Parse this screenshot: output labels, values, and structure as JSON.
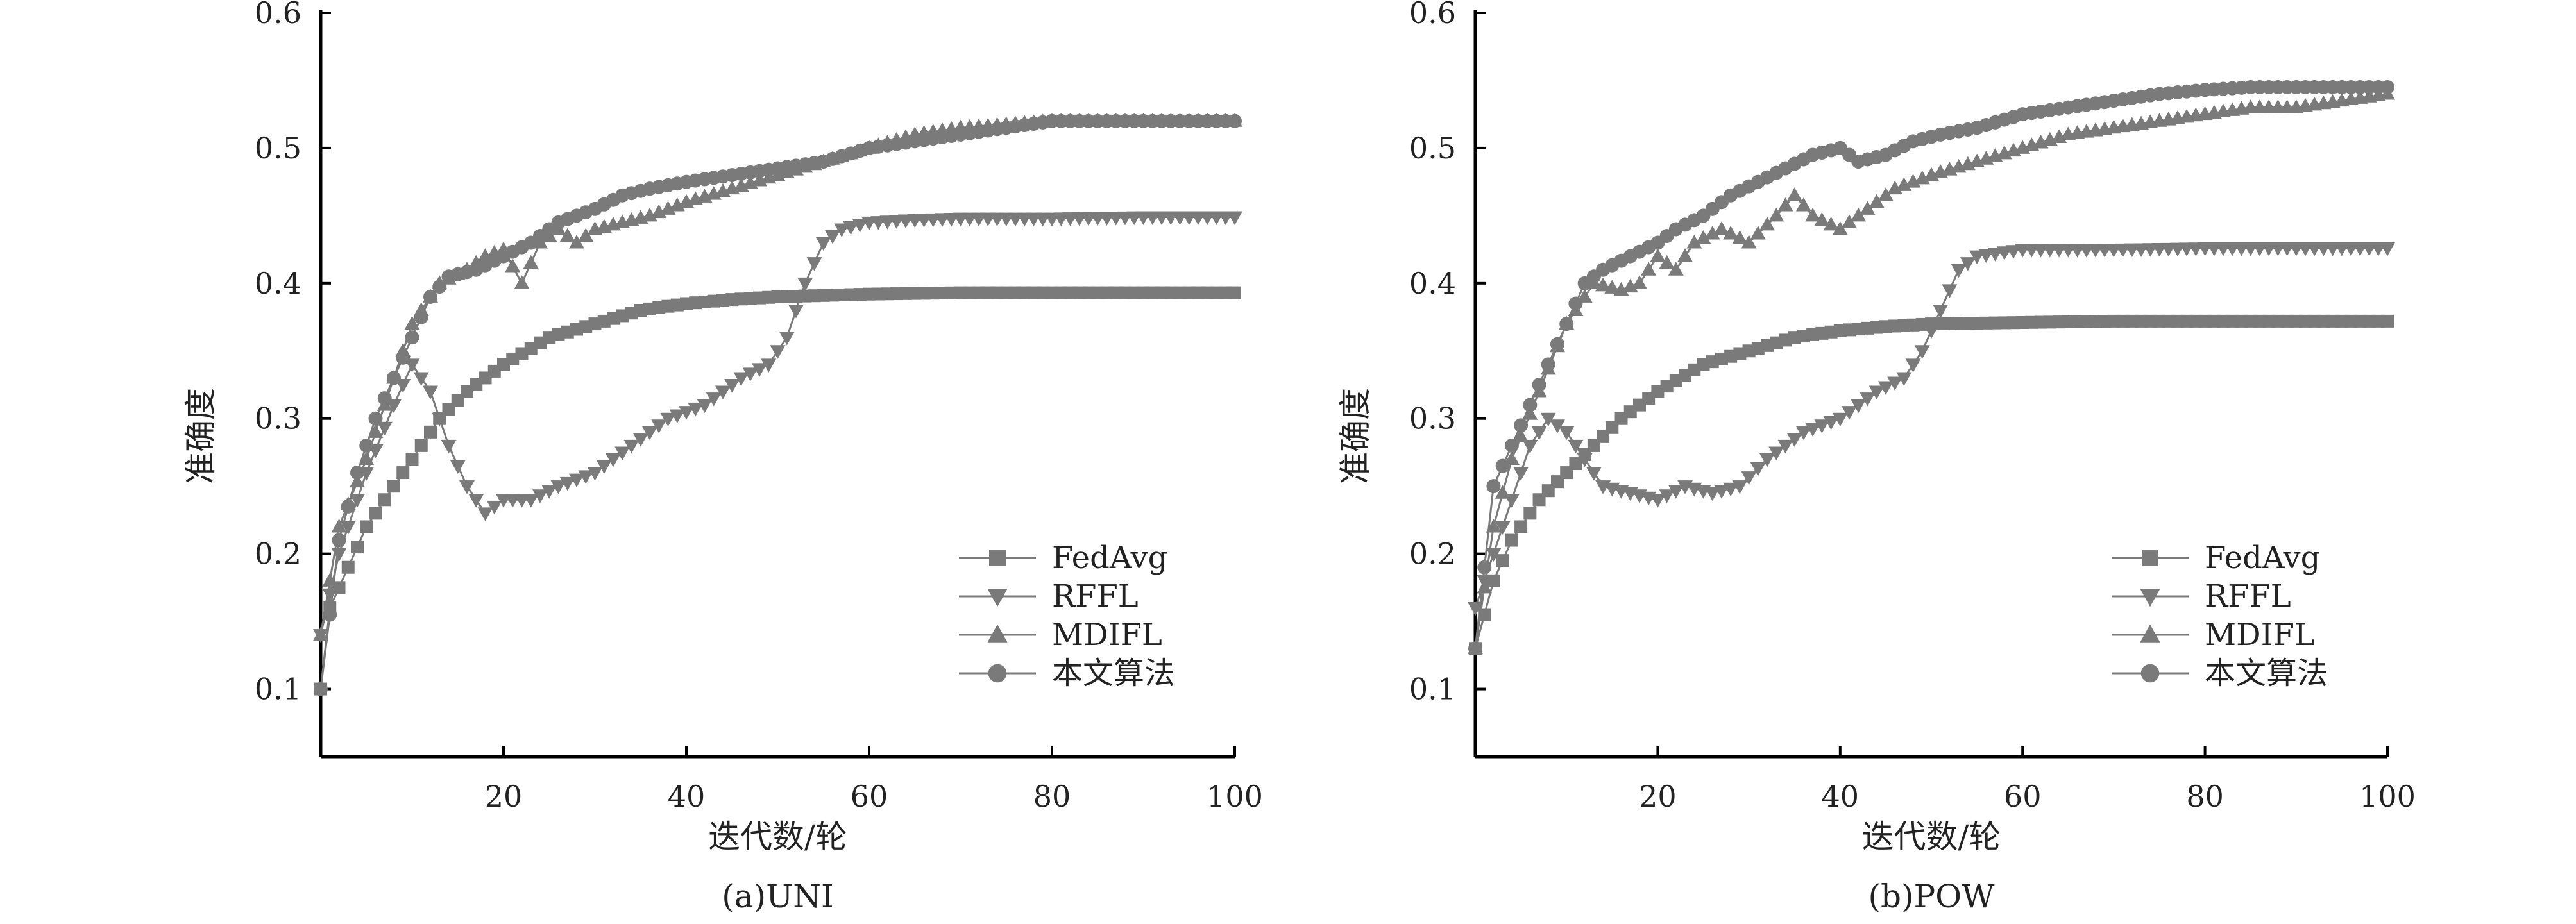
{
  "figure": {
    "colors": {
      "series": "#7a7a7a",
      "axis": "#000000",
      "text": "#222222"
    }
  },
  "chart_data": [
    {
      "type": "line",
      "caption": "(a)UNI",
      "xlabel": "迭代数/轮",
      "ylabel": "准确度",
      "xlim": [
        0,
        100
      ],
      "ylim": [
        0.05,
        0.6
      ],
      "x_ticks": [
        20,
        40,
        60,
        80,
        100
      ],
      "y_ticks": [
        0.1,
        0.2,
        0.3,
        0.4,
        0.5,
        0.6
      ],
      "x_tick_labels": [
        "20",
        "40",
        "60",
        "80",
        "100"
      ],
      "y_tick_labels": [
        "0.1",
        "0.2",
        "0.3",
        "0.4",
        "0.5",
        "0.6"
      ],
      "grid": false,
      "legend_position": "bottom-right",
      "series": [
        {
          "name": "FedAvg",
          "marker": "square",
          "points": [
            [
              0,
              0.1
            ],
            [
              1,
              0.16
            ],
            [
              3,
              0.19
            ],
            [
              5,
              0.22
            ],
            [
              8,
              0.25
            ],
            [
              10,
              0.27
            ],
            [
              13,
              0.3
            ],
            [
              16,
              0.32
            ],
            [
              20,
              0.34
            ],
            [
              25,
              0.36
            ],
            [
              30,
              0.37
            ],
            [
              35,
              0.38
            ],
            [
              40,
              0.385
            ],
            [
              45,
              0.388
            ],
            [
              50,
              0.39
            ],
            [
              60,
              0.392
            ],
            [
              70,
              0.393
            ],
            [
              80,
              0.393
            ],
            [
              90,
              0.393
            ],
            [
              100,
              0.393
            ]
          ]
        },
        {
          "name": "RFFL",
          "marker": "triangle-down",
          "points": [
            [
              0,
              0.14
            ],
            [
              2,
              0.2
            ],
            [
              5,
              0.26
            ],
            [
              8,
              0.31
            ],
            [
              10,
              0.34
            ],
            [
              12,
              0.32
            ],
            [
              14,
              0.28
            ],
            [
              16,
              0.25
            ],
            [
              18,
              0.23
            ],
            [
              20,
              0.24
            ],
            [
              23,
              0.24
            ],
            [
              26,
              0.25
            ],
            [
              30,
              0.26
            ],
            [
              34,
              0.28
            ],
            [
              38,
              0.3
            ],
            [
              42,
              0.31
            ],
            [
              46,
              0.33
            ],
            [
              49,
              0.34
            ],
            [
              51,
              0.36
            ],
            [
              53,
              0.4
            ],
            [
              55,
              0.43
            ],
            [
              57,
              0.44
            ],
            [
              60,
              0.445
            ],
            [
              65,
              0.447
            ],
            [
              70,
              0.448
            ],
            [
              80,
              0.448
            ],
            [
              90,
              0.449
            ],
            [
              100,
              0.449
            ]
          ]
        },
        {
          "name": "MDIFL",
          "marker": "triangle-up",
          "points": [
            [
              0,
              0.14
            ],
            [
              2,
              0.22
            ],
            [
              5,
              0.27
            ],
            [
              8,
              0.33
            ],
            [
              10,
              0.37
            ],
            [
              13,
              0.4
            ],
            [
              16,
              0.41
            ],
            [
              18,
              0.42
            ],
            [
              20,
              0.425
            ],
            [
              22,
              0.4
            ],
            [
              24,
              0.43
            ],
            [
              26,
              0.44
            ],
            [
              28,
              0.43
            ],
            [
              30,
              0.44
            ],
            [
              33,
              0.445
            ],
            [
              36,
              0.45
            ],
            [
              40,
              0.46
            ],
            [
              45,
              0.47
            ],
            [
              50,
              0.48
            ],
            [
              55,
              0.49
            ],
            [
              60,
              0.5
            ],
            [
              65,
              0.51
            ],
            [
              70,
              0.515
            ],
            [
              80,
              0.52
            ],
            [
              90,
              0.52
            ],
            [
              100,
              0.52
            ]
          ]
        },
        {
          "name": "本文算法",
          "marker": "circle",
          "points": [
            [
              0,
              0.1
            ],
            [
              2,
              0.21
            ],
            [
              4,
              0.26
            ],
            [
              6,
              0.3
            ],
            [
              8,
              0.33
            ],
            [
              10,
              0.36
            ],
            [
              12,
              0.39
            ],
            [
              14,
              0.405
            ],
            [
              17,
              0.41
            ],
            [
              20,
              0.42
            ],
            [
              23,
              0.43
            ],
            [
              26,
              0.445
            ],
            [
              30,
              0.455
            ],
            [
              33,
              0.465
            ],
            [
              36,
              0.47
            ],
            [
              40,
              0.475
            ],
            [
              45,
              0.48
            ],
            [
              50,
              0.485
            ],
            [
              55,
              0.49
            ],
            [
              60,
              0.5
            ],
            [
              65,
              0.505
            ],
            [
              70,
              0.51
            ],
            [
              75,
              0.515
            ],
            [
              80,
              0.52
            ],
            [
              90,
              0.52
            ],
            [
              100,
              0.52
            ]
          ]
        }
      ]
    },
    {
      "type": "line",
      "caption": "(b)POW",
      "xlabel": "迭代数/轮",
      "ylabel": "准确度",
      "xlim": [
        0,
        100
      ],
      "ylim": [
        0.05,
        0.6
      ],
      "x_ticks": [
        20,
        40,
        60,
        80,
        100
      ],
      "y_ticks": [
        0.1,
        0.2,
        0.3,
        0.4,
        0.5,
        0.6
      ],
      "x_tick_labels": [
        "20",
        "40",
        "60",
        "80",
        "100"
      ],
      "y_tick_labels": [
        "0.1",
        "0.2",
        "0.3",
        "0.4",
        "0.5",
        "0.6"
      ],
      "grid": false,
      "legend_position": "bottom-right",
      "series": [
        {
          "name": "FedAvg",
          "marker": "square",
          "points": [
            [
              0,
              0.13
            ],
            [
              2,
              0.18
            ],
            [
              4,
              0.21
            ],
            [
              7,
              0.24
            ],
            [
              10,
              0.26
            ],
            [
              13,
              0.28
            ],
            [
              16,
              0.3
            ],
            [
              20,
              0.32
            ],
            [
              25,
              0.34
            ],
            [
              30,
              0.35
            ],
            [
              35,
              0.36
            ],
            [
              40,
              0.365
            ],
            [
              45,
              0.368
            ],
            [
              50,
              0.37
            ],
            [
              60,
              0.371
            ],
            [
              70,
              0.372
            ],
            [
              80,
              0.372
            ],
            [
              90,
              0.372
            ],
            [
              100,
              0.372
            ]
          ]
        },
        {
          "name": "RFFL",
          "marker": "triangle-down",
          "points": [
            [
              0,
              0.16
            ],
            [
              2,
              0.2
            ],
            [
              4,
              0.24
            ],
            [
              6,
              0.28
            ],
            [
              8,
              0.3
            ],
            [
              10,
              0.29
            ],
            [
              12,
              0.27
            ],
            [
              14,
              0.25
            ],
            [
              17,
              0.245
            ],
            [
              20,
              0.24
            ],
            [
              23,
              0.25
            ],
            [
              26,
              0.245
            ],
            [
              29,
              0.25
            ],
            [
              32,
              0.27
            ],
            [
              36,
              0.29
            ],
            [
              40,
              0.3
            ],
            [
              44,
              0.32
            ],
            [
              47,
              0.33
            ],
            [
              49,
              0.35
            ],
            [
              51,
              0.38
            ],
            [
              53,
              0.41
            ],
            [
              55,
              0.42
            ],
            [
              60,
              0.425
            ],
            [
              70,
              0.425
            ],
            [
              80,
              0.426
            ],
            [
              90,
              0.426
            ],
            [
              100,
              0.426
            ]
          ]
        },
        {
          "name": "MDIFL",
          "marker": "triangle-up",
          "points": [
            [
              0,
              0.13
            ],
            [
              2,
              0.22
            ],
            [
              4,
              0.27
            ],
            [
              7,
              0.32
            ],
            [
              10,
              0.37
            ],
            [
              13,
              0.4
            ],
            [
              16,
              0.395
            ],
            [
              18,
              0.4
            ],
            [
              20,
              0.42
            ],
            [
              22,
              0.41
            ],
            [
              24,
              0.43
            ],
            [
              27,
              0.44
            ],
            [
              30,
              0.43
            ],
            [
              33,
              0.45
            ],
            [
              35,
              0.465
            ],
            [
              37,
              0.45
            ],
            [
              40,
              0.44
            ],
            [
              43,
              0.455
            ],
            [
              46,
              0.47
            ],
            [
              50,
              0.48
            ],
            [
              55,
              0.49
            ],
            [
              60,
              0.5
            ],
            [
              65,
              0.51
            ],
            [
              70,
              0.515
            ],
            [
              75,
              0.52
            ],
            [
              80,
              0.525
            ],
            [
              85,
              0.53
            ],
            [
              90,
              0.53
            ],
            [
              95,
              0.535
            ],
            [
              100,
              0.54
            ]
          ]
        },
        {
          "name": "本文算法",
          "marker": "circle",
          "points": [
            [
              0,
              0.13
            ],
            [
              2,
              0.25
            ],
            [
              4,
              0.28
            ],
            [
              6,
              0.31
            ],
            [
              8,
              0.34
            ],
            [
              10,
              0.37
            ],
            [
              12,
              0.4
            ],
            [
              14,
              0.41
            ],
            [
              17,
              0.42
            ],
            [
              20,
              0.43
            ],
            [
              22,
              0.44
            ],
            [
              25,
              0.45
            ],
            [
              28,
              0.465
            ],
            [
              31,
              0.475
            ],
            [
              34,
              0.485
            ],
            [
              37,
              0.495
            ],
            [
              40,
              0.5
            ],
            [
              42,
              0.49
            ],
            [
              45,
              0.495
            ],
            [
              48,
              0.505
            ],
            [
              51,
              0.51
            ],
            [
              55,
              0.515
            ],
            [
              60,
              0.525
            ],
            [
              65,
              0.53
            ],
            [
              70,
              0.535
            ],
            [
              75,
              0.54
            ],
            [
              80,
              0.543
            ],
            [
              85,
              0.545
            ],
            [
              90,
              0.545
            ],
            [
              95,
              0.545
            ],
            [
              100,
              0.545
            ]
          ]
        }
      ]
    }
  ]
}
